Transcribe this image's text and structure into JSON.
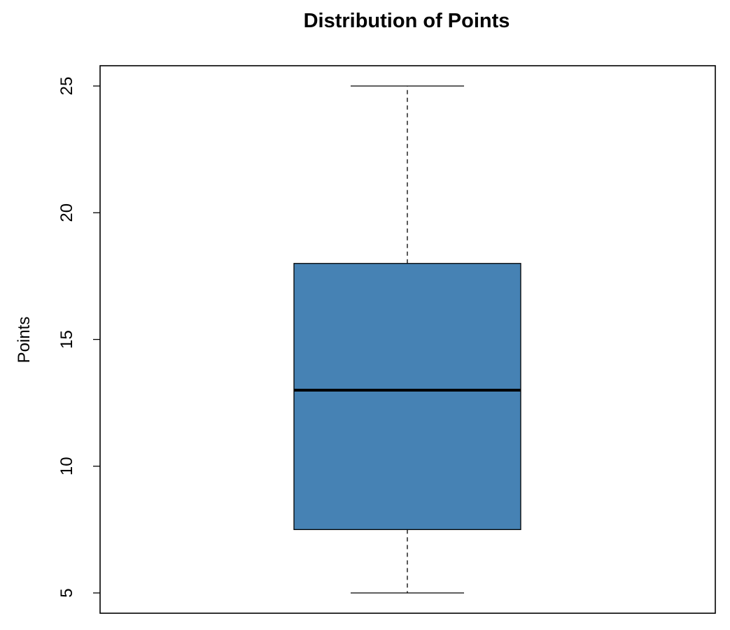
{
  "chart_data": {
    "type": "boxplot",
    "title": "Distribution of Points",
    "xlabel": "",
    "ylabel": "Points",
    "ylim": [
      4.2,
      25.8
    ],
    "yticks": [
      5,
      10,
      15,
      20,
      25
    ],
    "ytick_labels": [
      "5",
      "10",
      "15",
      "20",
      "25"
    ],
    "grid": false,
    "series": [
      {
        "min": 5,
        "q1": 7.5,
        "median": 13,
        "q3": 18,
        "max": 25
      }
    ],
    "colors": {
      "box_fill": "#4682B4",
      "box_stroke": "#000000",
      "median": "#000000",
      "whisker": "#000000",
      "frame": "#000000"
    }
  }
}
